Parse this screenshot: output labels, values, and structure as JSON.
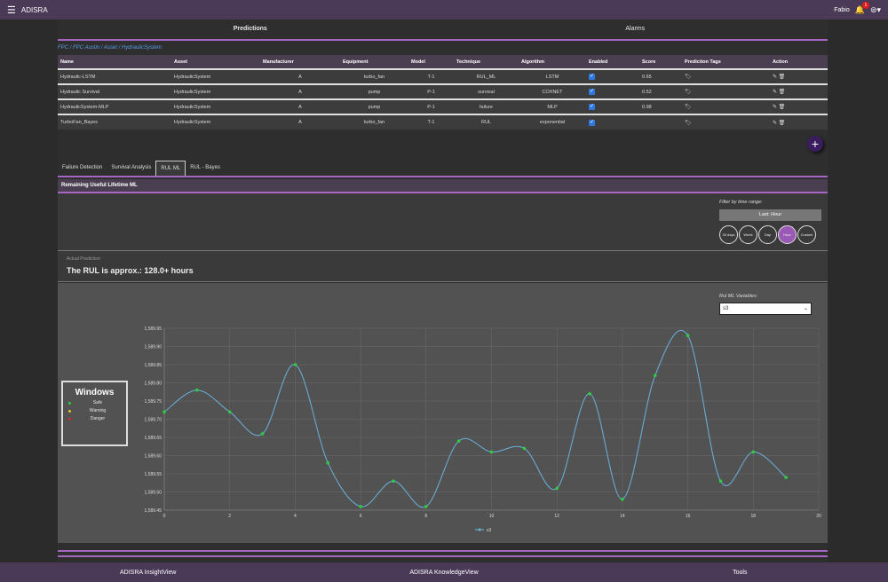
{
  "app": {
    "title": "ADISRA",
    "user": "Fabio",
    "notif_count": "1"
  },
  "main_tabs": [
    "Predictions",
    "Alarms"
  ],
  "breadcrumb": "FPC / FPC Austin / Asset / HydraulicSystem",
  "table": {
    "headers": [
      "Name",
      "Asset",
      "Manufacturer",
      "Equipment",
      "Model",
      "Technique",
      "Algorithm",
      "Enabled",
      "Score",
      "Prediction Tags",
      "Action"
    ],
    "rows": [
      {
        "name": "Hydraulic-LSTM",
        "asset": "HydraulicSystem",
        "manufacturer": "A",
        "equipment": "turbo_fan",
        "model": "T-1",
        "technique": "RUL_ML",
        "algorithm": "LSTM",
        "score": "0.65"
      },
      {
        "name": "Hydraulic Survival",
        "asset": "HydraulicSystem",
        "manufacturer": "A",
        "equipment": "pump",
        "model": "P-1",
        "technique": "survival",
        "algorithm": "COXNET",
        "score": "0.52"
      },
      {
        "name": "HydraulicSystem-MLP",
        "asset": "HydraulicSystem",
        "manufacturer": "A",
        "equipment": "pump",
        "model": "P-1",
        "technique": "failure",
        "algorithm": "MLP",
        "score": "0.98"
      },
      {
        "name": "TurboFan_Bayes",
        "asset": "HydraulicSystem",
        "manufacturer": "A",
        "equipment": "turbo_fan",
        "model": "T-1",
        "technique": "RUL",
        "algorithm": "exponential",
        "score": ""
      }
    ]
  },
  "sub_tabs": [
    "Failure Detection",
    "Survival Analysis",
    "RUL ML",
    "RUL - Bayes"
  ],
  "section_title": "Remaining Useful Lifetime ML",
  "filter": {
    "label": "Filter by time range:",
    "selected": "Last: Hour",
    "buttons": [
      "30 days",
      "Week",
      "Day",
      "Hour",
      "Custom"
    ],
    "active": "Hour"
  },
  "actual": {
    "label": "Actual Prediction:",
    "value": "The RUL is approx.: 128.0+ hours"
  },
  "variables": {
    "label": "Rul ML Variables:",
    "selected": "s3"
  },
  "legend_box": {
    "title": "Windows",
    "items": [
      {
        "label": "Safe",
        "color": "#2ecc40"
      },
      {
        "label": "Warning",
        "color": "#e6c619"
      },
      {
        "label": "Danger",
        "color": "#d9262c"
      }
    ]
  },
  "chart_data": {
    "type": "line",
    "x": [
      0,
      1,
      2,
      3,
      4,
      5,
      6,
      7,
      8,
      9,
      10,
      11,
      12,
      13,
      14,
      15,
      16,
      17,
      18,
      19
    ],
    "series": [
      {
        "name": "s3",
        "values": [
          1589.72,
          1589.78,
          1589.72,
          1589.66,
          1589.85,
          1589.58,
          1589.46,
          1589.53,
          1589.46,
          1589.64,
          1589.61,
          1589.62,
          1589.51,
          1589.77,
          1589.48,
          1589.82,
          1589.93,
          1589.53,
          1589.61,
          1589.54
        ]
      }
    ],
    "xlim": [
      0,
      20
    ],
    "ylim": [
      1589.45,
      1589.95
    ],
    "xticks": [
      0,
      2,
      4,
      6,
      8,
      10,
      12,
      14,
      16,
      18,
      20
    ],
    "yticks": [
      "1,589.45",
      "1,589.50",
      "1,589.55",
      "1,589.60",
      "1,589.65",
      "1,589.70",
      "1,589.75",
      "1,589.80",
      "1,589.85",
      "1,589.90",
      "1,589.95"
    ],
    "grid": true,
    "legend": "bottom",
    "line_color": "#6ab2de",
    "point_color": "#2ecc40"
  },
  "bottom_nav": [
    "ADISRA InsightView",
    "ADISRA KnowledgeView",
    "Tools"
  ]
}
